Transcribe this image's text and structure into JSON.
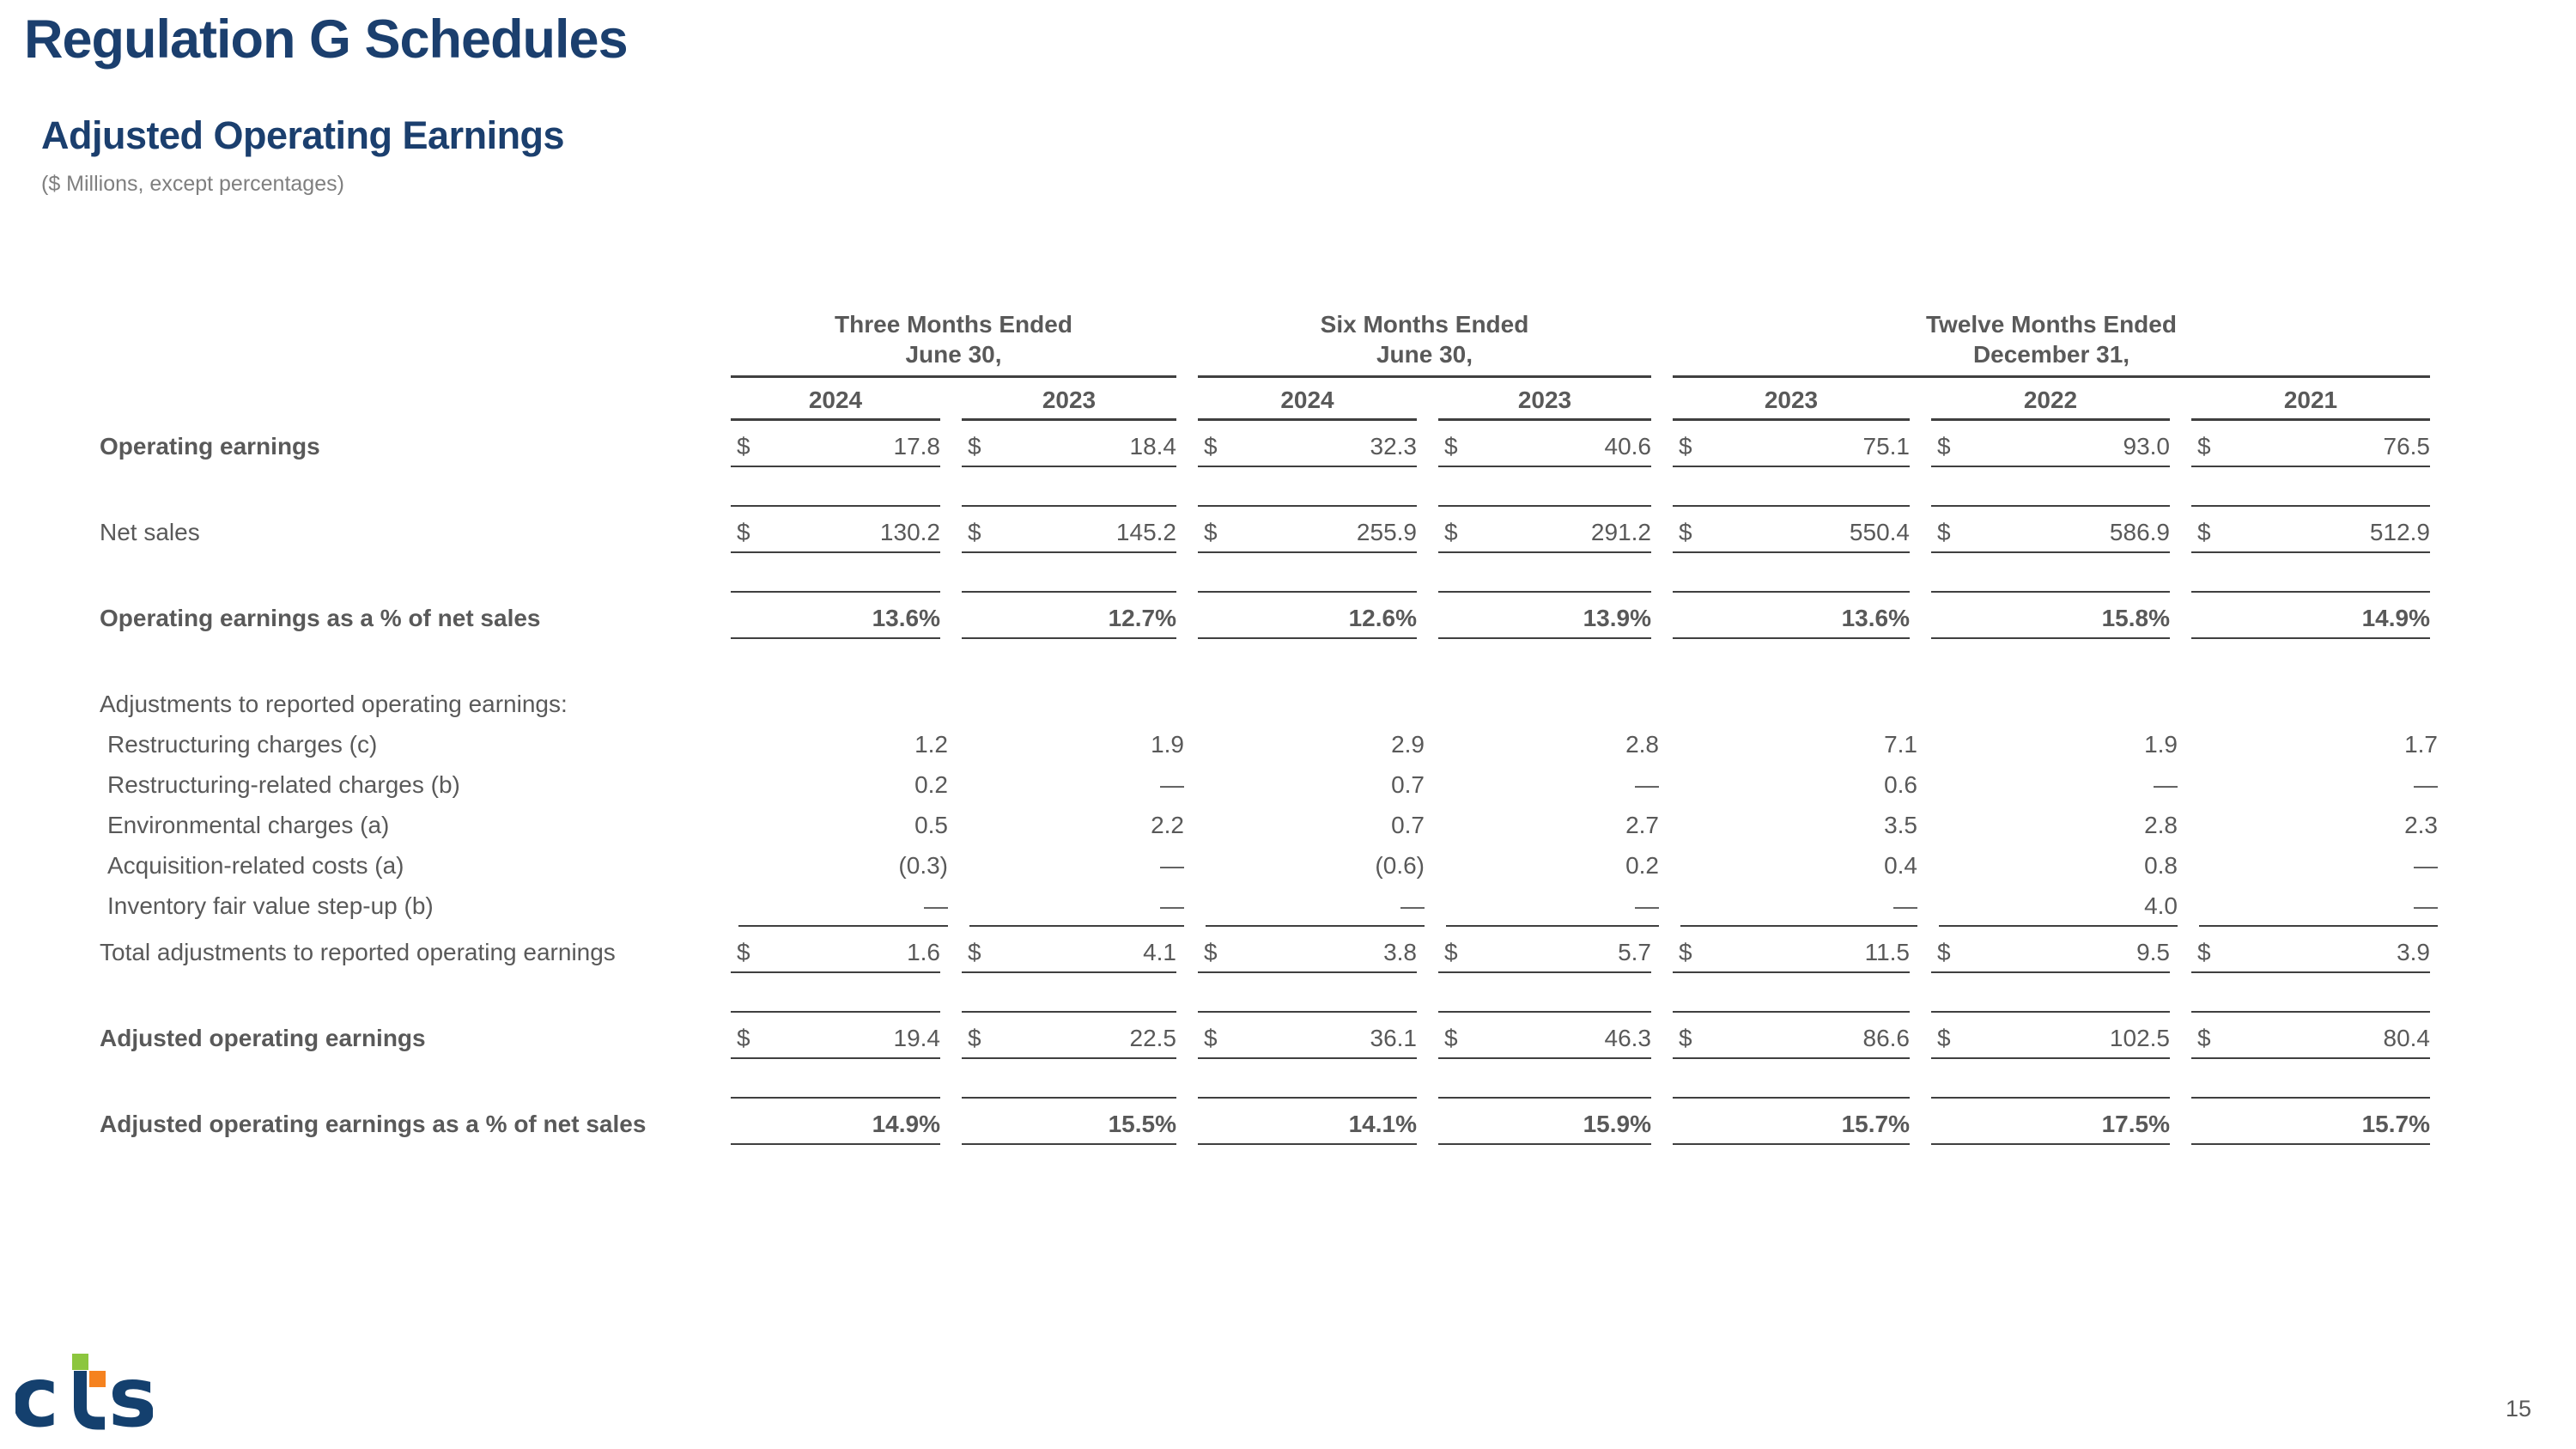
{
  "page": {
    "title": "Regulation G Schedules",
    "subtitle": "Adjusted Operating Earnings",
    "units_note": "($ Millions, except percentages)",
    "page_number": "15"
  },
  "logo": {
    "letter_c": "c",
    "letter_s": "s",
    "navy": "#14406E",
    "green": "#8CC63E",
    "orange": "#F5821F"
  },
  "colors": {
    "heading_navy": "#1B3F6E",
    "body_gray": "#595959",
    "rule_gray": "#404040"
  },
  "table": {
    "column_groups": [
      {
        "title_line1": "Three Months Ended",
        "title_line2": "June 30,",
        "years": [
          "2024",
          "2023"
        ]
      },
      {
        "title_line1": "Six Months Ended",
        "title_line2": "June 30,",
        "years": [
          "2024",
          "2023"
        ]
      },
      {
        "title_line1": "Twelve Months Ended",
        "title_line2": "December 31,",
        "years": [
          "2023",
          "2022",
          "2021"
        ]
      }
    ],
    "rows": [
      {
        "id": "operating-earnings",
        "type": "data",
        "label": "Operating earnings",
        "label_bold": true,
        "dollar": true,
        "rule": true,
        "values": [
          "17.8",
          "18.4",
          "32.3",
          "40.6",
          "75.1",
          "93.0",
          "76.5"
        ]
      },
      {
        "type": "spacer",
        "rule": true
      },
      {
        "id": "net-sales",
        "type": "data",
        "label": "Net sales",
        "dollar": true,
        "rule": true,
        "values": [
          "130.2",
          "145.2",
          "255.9",
          "291.2",
          "550.4",
          "586.9",
          "512.9"
        ]
      },
      {
        "type": "spacer",
        "rule": true
      },
      {
        "id": "operating-margin",
        "type": "data",
        "label": "Operating earnings as a % of net sales",
        "label_bold": true,
        "values_bold": true,
        "rule": true,
        "values": [
          "13.6%",
          "12.7%",
          "12.6%",
          "13.9%",
          "13.6%",
          "15.8%",
          "14.9%"
        ]
      },
      {
        "type": "gap"
      },
      {
        "id": "adjustments-header",
        "type": "section",
        "label": "Adjustments to reported operating earnings:"
      },
      {
        "id": "restructuring-charges",
        "type": "data",
        "detail": true,
        "indent": true,
        "label": "Restructuring charges (c)",
        "values": [
          "1.2",
          "1.9",
          "2.9",
          "2.8",
          "7.1",
          "1.9",
          "1.7"
        ]
      },
      {
        "id": "restructuring-related-charges",
        "type": "data",
        "detail": true,
        "indent": true,
        "label": "Restructuring-related charges (b)",
        "values": [
          "0.2",
          "—",
          "0.7",
          "—",
          "0.6",
          "—",
          "—"
        ]
      },
      {
        "id": "environmental-charges",
        "type": "data",
        "detail": true,
        "indent": true,
        "label": "Environmental charges (a)",
        "values": [
          "0.5",
          "2.2",
          "0.7",
          "2.7",
          "3.5",
          "2.8",
          "2.3"
        ]
      },
      {
        "id": "acquisition-related-costs",
        "type": "data",
        "detail": true,
        "indent": true,
        "label": "Acquisition-related costs (a)",
        "values": [
          "(0.3)",
          "—",
          "(0.6)",
          "0.2",
          "0.4",
          "0.8",
          "—"
        ]
      },
      {
        "id": "inventory-step-up",
        "type": "data",
        "detail": true,
        "indent": true,
        "rule": true,
        "label": "Inventory fair value step-up (b)",
        "values": [
          "—",
          "—",
          "—",
          "—",
          "—",
          "4.0",
          "—"
        ]
      },
      {
        "id": "total-adjustments",
        "type": "data",
        "label": "Total adjustments to reported operating earnings",
        "dollar": true,
        "rule": true,
        "values": [
          "1.6",
          "4.1",
          "3.8",
          "5.7",
          "11.5",
          "9.5",
          "3.9"
        ]
      },
      {
        "type": "spacer",
        "rule": true
      },
      {
        "id": "adjusted-operating-earnings",
        "type": "data",
        "label": "Adjusted operating earnings",
        "label_bold": true,
        "dollar": true,
        "rule": true,
        "values": [
          "19.4",
          "22.5",
          "36.1",
          "46.3",
          "86.6",
          "102.5",
          "80.4"
        ]
      },
      {
        "type": "spacer",
        "rule": true
      },
      {
        "id": "adjusted-operating-margin",
        "type": "data",
        "label": "Adjusted operating earnings as a % of net sales",
        "label_bold": true,
        "values_bold": true,
        "rule": true,
        "values": [
          "14.9%",
          "15.5%",
          "14.1%",
          "15.9%",
          "15.7%",
          "17.5%",
          "15.7%"
        ]
      }
    ]
  }
}
